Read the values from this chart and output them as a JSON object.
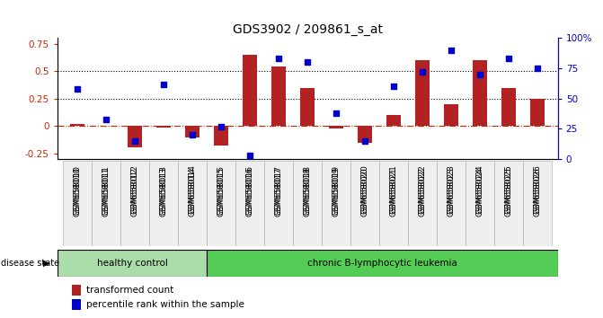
{
  "title": "GDS3902 / 209861_s_at",
  "samples": [
    "GSM658010",
    "GSM658011",
    "GSM658012",
    "GSM658013",
    "GSM658014",
    "GSM658015",
    "GSM658016",
    "GSM658017",
    "GSM658018",
    "GSM658019",
    "GSM658020",
    "GSM658021",
    "GSM658022",
    "GSM658023",
    "GSM658024",
    "GSM658025",
    "GSM658026"
  ],
  "transformed_count": [
    0.02,
    0.0,
    -0.19,
    -0.01,
    -0.1,
    -0.18,
    0.65,
    0.54,
    0.35,
    -0.02,
    -0.15,
    0.1,
    0.6,
    0.2,
    0.6,
    0.35,
    0.25
  ],
  "percentile_rank": [
    58,
    33,
    15,
    62,
    20,
    27,
    3,
    83,
    80,
    38,
    15,
    60,
    72,
    90,
    70,
    83,
    75
  ],
  "bar_color": "#b22222",
  "dot_color": "#0000cd",
  "ylim_left": [
    -0.3,
    0.8
  ],
  "ylim_right": [
    0,
    100
  ],
  "yticks_left": [
    -0.25,
    0.0,
    0.25,
    0.5,
    0.75
  ],
  "yticks_right": [
    0,
    25,
    50,
    75,
    100
  ],
  "hline_dotted": [
    0.25,
    0.5
  ],
  "bar_width": 0.5,
  "healthy_count": 5,
  "healthy_color": "#aaddaa",
  "leukemia_color": "#55cc55"
}
